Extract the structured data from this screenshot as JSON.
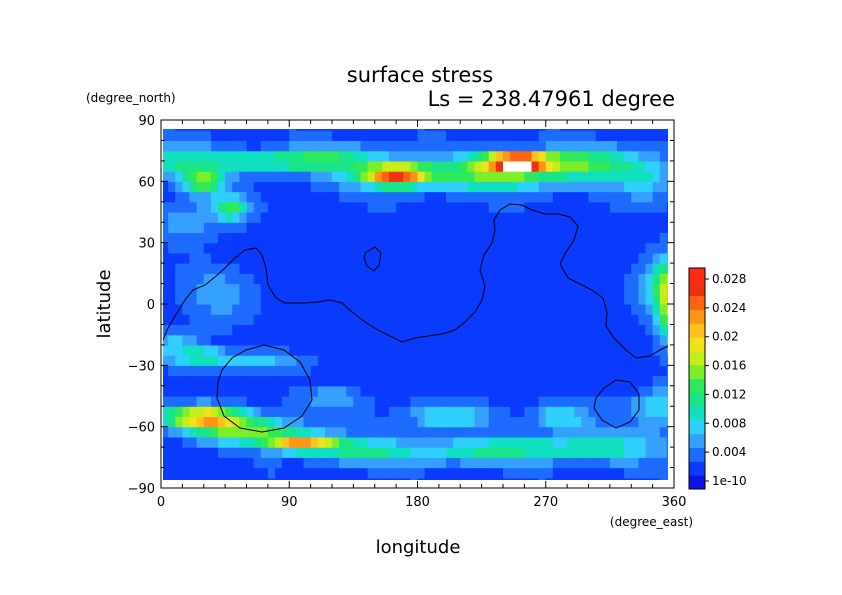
{
  "chart_data": {
    "type": "heatmap",
    "title": "surface stress",
    "subtitle": "Ls = 238.47961 degree",
    "xlabel": "longitude",
    "ylabel": "latitude",
    "x_units": "(degree_east)",
    "y_units": "(degree_north)",
    "xlim": [
      0,
      360
    ],
    "ylim": [
      -90,
      90
    ],
    "x_ticks": [
      "0",
      "90",
      "180",
      "270",
      "360"
    ],
    "y_ticks": [
      "90",
      "60",
      "30",
      "0",
      "−30",
      "−60",
      "−90"
    ],
    "x_tick_values": [
      0,
      90,
      180,
      270,
      360
    ],
    "y_tick_values": [
      90,
      60,
      30,
      0,
      -30,
      -60,
      -90
    ],
    "colorbar": {
      "labels": [
        "0.028",
        "0.024",
        "0.02",
        "0.016",
        "0.012",
        "0.008",
        "0.004",
        "1e-10"
      ],
      "min": 0,
      "max": 0.03,
      "colors": [
        "#0a14e6",
        "#0b3bff",
        "#1e6cff",
        "#36a0ff",
        "#2fd0ff",
        "#10e0c0",
        "#19e48a",
        "#2fe95a",
        "#7cee2a",
        "#c4ee18",
        "#f2e21a",
        "#ffc21c",
        "#ff9417",
        "#ff6412",
        "#f03010",
        "#ffffff"
      ]
    },
    "grid": false,
    "legend": "right",
    "field_summary": {
      "background": 0.003,
      "hotspots": [
        {
          "lon": 250,
          "lat": 70,
          "value": 0.032
        },
        {
          "lon": 165,
          "lat": 63,
          "value": 0.022
        },
        {
          "lon": 100,
          "lat": -68,
          "value": 0.022
        },
        {
          "lon": 30,
          "lat": -55,
          "value": 0.02
        },
        {
          "lon": 30,
          "lat": 60,
          "value": 0.018
        },
        {
          "lon": 355,
          "lat": 0,
          "value": 0.018
        }
      ]
    }
  }
}
